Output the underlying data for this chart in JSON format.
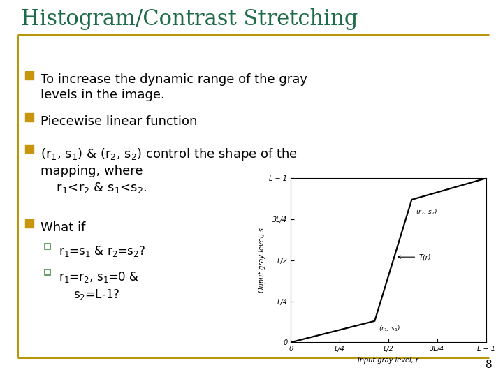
{
  "title": "Histogram/Contrast Stretching",
  "title_color": "#1E6B4A",
  "title_fontsize": 22,
  "background_color": "#FFFFFF",
  "border_color": "#B8960C",
  "slide_number": "8",
  "bullet_color": "#C8960C",
  "sub_bullet_color": "#4A8A4A",
  "text_color": "#000000",
  "plot": {
    "r1": 0.43,
    "s1": 0.13,
    "r2": 0.62,
    "s2": 0.87,
    "line_color": "#000000",
    "line_width": 1.6,
    "xlabel": "Input gray level, r",
    "ylabel": "Ouput gray level, s",
    "xticks": [
      0,
      0.25,
      0.5,
      0.75,
      1.0
    ],
    "xtick_labels": [
      "0",
      "L/4",
      "L/2",
      "3L/4",
      "L − 1"
    ],
    "yticks": [
      0,
      0.25,
      0.5,
      0.75,
      1.0
    ],
    "ytick_labels": [
      "0",
      "L/4",
      "L/2",
      "3L/4",
      "L − 1"
    ],
    "annotation_r1s1": "(r$_1$, s$_1$)",
    "annotation_r2s2": "(r$_2$, s$_2$)",
    "annotation_Tr": "T(r)"
  }
}
